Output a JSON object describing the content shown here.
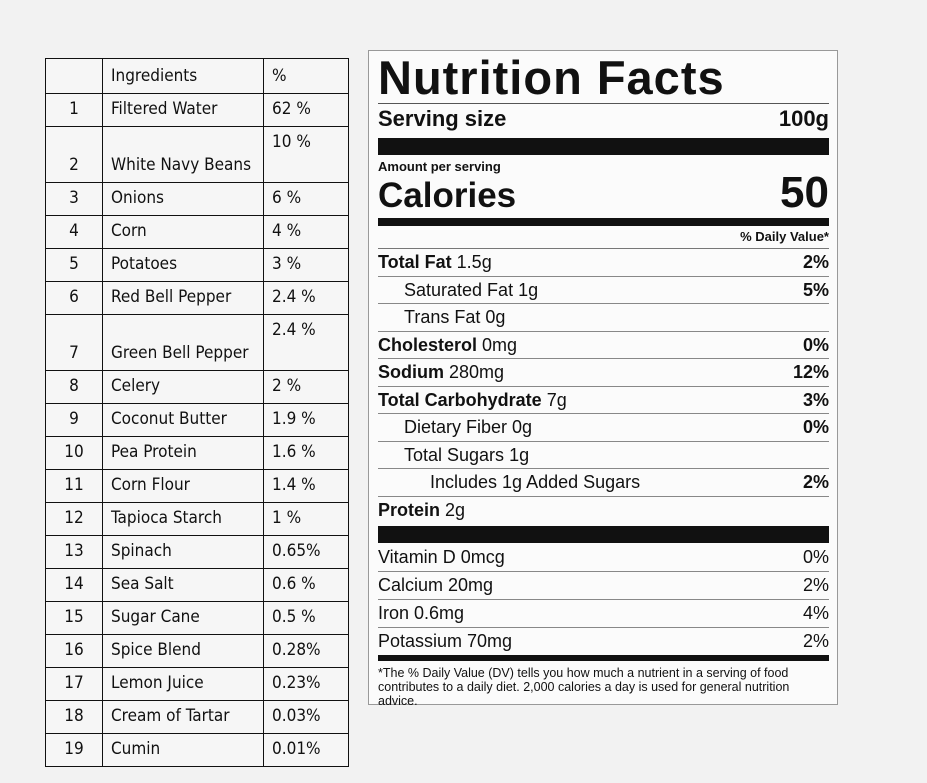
{
  "ingredients": {
    "header": {
      "num": "",
      "name": "Ingredients",
      "pct": "%"
    },
    "rows": [
      {
        "num": "1",
        "name": "Filtered Water",
        "pct": "62 %",
        "tall": false
      },
      {
        "num": "2",
        "name": "White Navy Beans",
        "pct": "10 %",
        "tall": true
      },
      {
        "num": "3",
        "name": "Onions",
        "pct": "6 %",
        "tall": false
      },
      {
        "num": "4",
        "name": "Corn",
        "pct": "4 %",
        "tall": false
      },
      {
        "num": "5",
        "name": "Potatoes",
        "pct": "3 %",
        "tall": false
      },
      {
        "num": "6",
        "name": "Red Bell Pepper",
        "pct": "2.4 %",
        "tall": false
      },
      {
        "num": "7",
        "name": "Green Bell Pepper",
        "pct": "2.4 %",
        "tall": true
      },
      {
        "num": "8",
        "name": "Celery",
        "pct": "2 %",
        "tall": false
      },
      {
        "num": "9",
        "name": "Coconut Butter",
        "pct": "1.9 %",
        "tall": false
      },
      {
        "num": "10",
        "name": "Pea Protein",
        "pct": "1.6 %",
        "tall": false
      },
      {
        "num": "11",
        "name": "Corn Flour",
        "pct": "1.4 %",
        "tall": false
      },
      {
        "num": "12",
        "name": "Tapioca Starch",
        "pct": "1 %",
        "tall": false
      },
      {
        "num": "13",
        "name": "Spinach",
        "pct": "0.65%",
        "tall": false
      },
      {
        "num": "14",
        "name": "Sea Salt",
        "pct": "0.6 %",
        "tall": false
      },
      {
        "num": "15",
        "name": "Sugar Cane",
        "pct": "0.5 %",
        "tall": false
      },
      {
        "num": "16",
        "name": "Spice Blend",
        "pct": "0.28%",
        "tall": false
      },
      {
        "num": "17",
        "name": "Lemon Juice",
        "pct": "0.23%",
        "tall": false
      },
      {
        "num": "18",
        "name": "Cream of Tartar",
        "pct": "0.03%",
        "tall": false
      },
      {
        "num": "19",
        "name": "Cumin",
        "pct": "0.01%",
        "tall": false
      }
    ]
  },
  "nutrition": {
    "title": "Nutrition Facts",
    "serving_label": "Serving size",
    "serving_value": "100g",
    "amount_per_serving": "Amount per serving",
    "calories_label": "Calories",
    "calories_value": "50",
    "dv_header": "% Daily Value*",
    "nutrients": [
      {
        "label": "Total Fat",
        "amount": " 1.5g",
        "dv": "2%",
        "bold": true,
        "indent": 0
      },
      {
        "label": "Saturated Fat",
        "amount": " 1g",
        "dv": "5%",
        "bold": false,
        "indent": 1
      },
      {
        "label": "Trans Fat",
        "amount": " 0g",
        "dv": "",
        "bold": false,
        "indent": 1
      },
      {
        "label": "Cholesterol",
        "amount": " 0mg",
        "dv": "0%",
        "bold": true,
        "indent": 0
      },
      {
        "label": "Sodium",
        "amount": " 280mg",
        "dv": "12%",
        "bold": true,
        "indent": 0
      },
      {
        "label": "Total Carbohydrate",
        "amount": " 7g",
        "dv": "3%",
        "bold": true,
        "indent": 0
      },
      {
        "label": "Dietary Fiber",
        "amount": " 0g",
        "dv": "0%",
        "bold": false,
        "indent": 1
      },
      {
        "label": "Total Sugars",
        "amount": " 1g",
        "dv": "",
        "bold": false,
        "indent": 1
      },
      {
        "label": "Includes 1g Added Sugars",
        "amount": "",
        "dv": "2%",
        "bold": false,
        "indent": 2
      },
      {
        "label": "Protein",
        "amount": " 2g",
        "dv": "",
        "bold": true,
        "indent": 0
      }
    ],
    "vitamins": [
      {
        "label": "Vitamin D 0mcg",
        "dv": "0%"
      },
      {
        "label": "Calcium 20mg",
        "dv": "2%"
      },
      {
        "label": "Iron 0.6mg",
        "dv": "4%"
      },
      {
        "label": "Potassium 70mg",
        "dv": "2%"
      }
    ],
    "footnote": "*The % Daily Value (DV) tells you how much a nutrient in a serving of food contributes to a daily diet. 2,000 calories a day is used for general nutrition advice."
  }
}
